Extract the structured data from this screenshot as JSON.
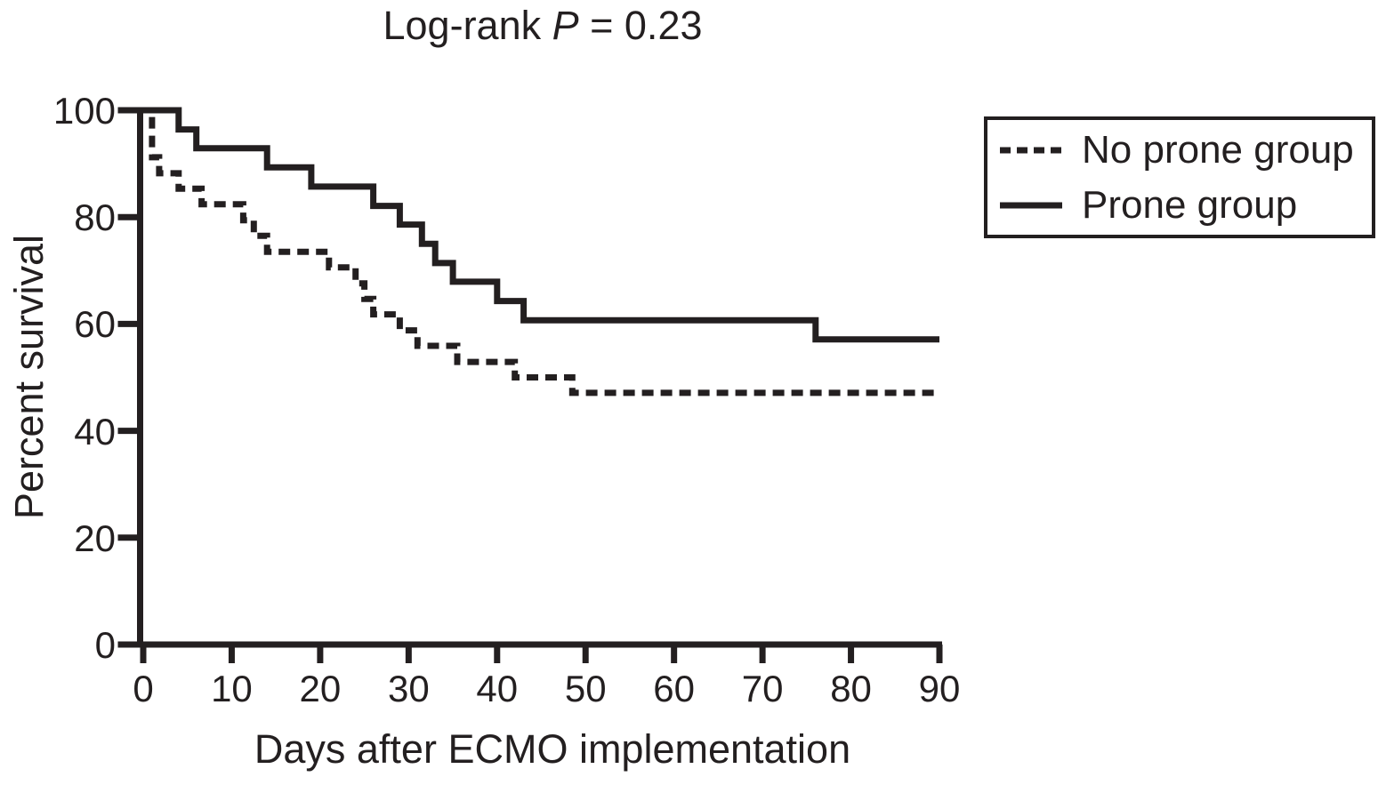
{
  "figure": {
    "title": {
      "prefix": "Log-rank ",
      "stat_symbol": "P",
      "suffix": " = 0.23",
      "full_text": "Log-rank P = 0.23"
    },
    "x_axis_label": "Days after ECMO implementation",
    "y_axis_label": "Percent survival"
  },
  "colors": {
    "line": "#231f20",
    "text": "#231f20",
    "background": "#ffffff"
  },
  "chart_data": {
    "type": "line",
    "subtype": "kaplan-meier-step",
    "title": "Log-rank P = 0.23",
    "xlabel": "Days after ECMO implementation",
    "ylabel": "Percent survival",
    "xlim": [
      0,
      90
    ],
    "ylim": [
      0,
      100
    ],
    "x_ticks": [
      0,
      10,
      20,
      30,
      40,
      50,
      60,
      70,
      80,
      90
    ],
    "y_ticks": [
      0,
      20,
      40,
      60,
      80,
      100
    ],
    "grid": false,
    "legend_position": "outside-upper-right",
    "series": [
      {
        "name": "No prone group",
        "style": "dashed",
        "color": "#231f20",
        "steps_days_percent": [
          [
            0,
            100
          ],
          [
            1,
            91.2
          ],
          [
            1.8,
            88.2
          ],
          [
            4,
            85.3
          ],
          [
            6.6,
            82.4
          ],
          [
            11.3,
            79.4
          ],
          [
            12.5,
            76.5
          ],
          [
            14,
            73.5
          ],
          [
            21,
            70.6
          ],
          [
            24,
            67.6
          ],
          [
            25,
            64.7
          ],
          [
            26,
            61.8
          ],
          [
            29,
            58.8
          ],
          [
            31,
            55.9
          ],
          [
            35.5,
            52.9
          ],
          [
            42,
            50.0
          ],
          [
            48.5,
            47.1
          ],
          [
            90,
            47.1
          ]
        ]
      },
      {
        "name": "Prone group",
        "style": "solid",
        "color": "#231f20",
        "steps_days_percent": [
          [
            0,
            100
          ],
          [
            4,
            96.4
          ],
          [
            6,
            92.9
          ],
          [
            14,
            89.3
          ],
          [
            19,
            85.7
          ],
          [
            26,
            82.1
          ],
          [
            29,
            78.6
          ],
          [
            31.5,
            75.0
          ],
          [
            33,
            71.4
          ],
          [
            35,
            67.9
          ],
          [
            40,
            64.3
          ],
          [
            43,
            60.7
          ],
          [
            76,
            57.1
          ],
          [
            90,
            57.1
          ]
        ]
      }
    ]
  }
}
